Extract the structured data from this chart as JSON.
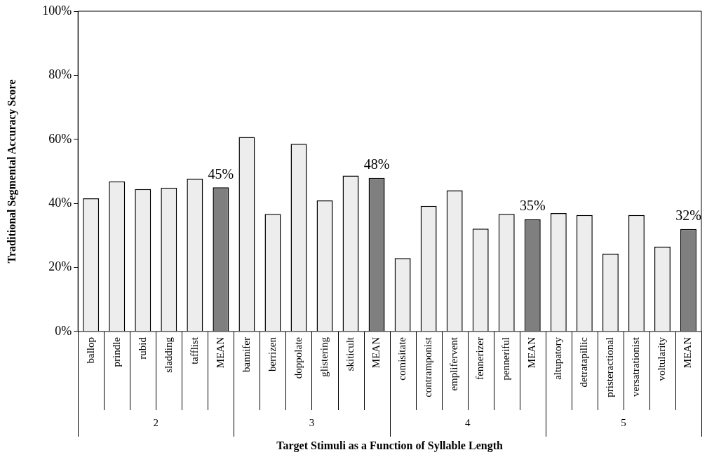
{
  "chart_data": {
    "type": "bar",
    "xlabel": "Target Stimuli as a Function of Syllable Length",
    "ylabel": "Traditional Segmental Accuracy Score",
    "categories": [
      "ballop",
      "prindle",
      "rubid",
      "sladding",
      "tafflist",
      "MEAN",
      "bannifer",
      "berrizen",
      "doppolate",
      "glistering",
      "skiticult",
      "MEAN",
      "comisitate",
      "contramponist",
      "emplifervent",
      "fennerizer",
      "penneriful",
      "MEAN",
      "altupatory",
      "detratapillic",
      "pristeractional",
      "versatrationist",
      "voltularity",
      "MEAN"
    ],
    "values": [
      41.6,
      46.9,
      44.5,
      44.9,
      47.7,
      45,
      60.7,
      36.7,
      58.6,
      40.9,
      48.7,
      48,
      22.9,
      39.2,
      44.1,
      32.1,
      36.7,
      35,
      37.0,
      36.4,
      24.3,
      36.4,
      26.5,
      32
    ],
    "colors": [
      "#ededed",
      "#ededed",
      "#ededed",
      "#ededed",
      "#ededed",
      "#7f7f7f",
      "#ededed",
      "#ededed",
      "#ededed",
      "#ededed",
      "#ededed",
      "#7f7f7f",
      "#ededed",
      "#ededed",
      "#ededed",
      "#ededed",
      "#ededed",
      "#7f7f7f",
      "#ededed",
      "#ededed",
      "#ededed",
      "#ededed",
      "#ededed",
      "#7f7f7f"
    ],
    "value_labels": [
      null,
      null,
      null,
      null,
      null,
      "45%",
      null,
      null,
      null,
      null,
      null,
      "48%",
      null,
      null,
      null,
      null,
      null,
      "35%",
      null,
      null,
      null,
      null,
      null,
      "32%"
    ],
    "annotations": [
      "2",
      "3",
      "4",
      "5"
    ],
    "ylim": [
      0,
      100
    ],
    "yticks": [
      {
        "value": 0,
        "label": "0%"
      },
      {
        "value": 20,
        "label": "20%"
      },
      {
        "value": 40,
        "label": "40%"
      },
      {
        "value": 60,
        "label": "60%"
      },
      {
        "value": 80,
        "label": "80%"
      },
      {
        "value": 100,
        "label": "100%"
      }
    ],
    "grid": false,
    "legend": false
  }
}
